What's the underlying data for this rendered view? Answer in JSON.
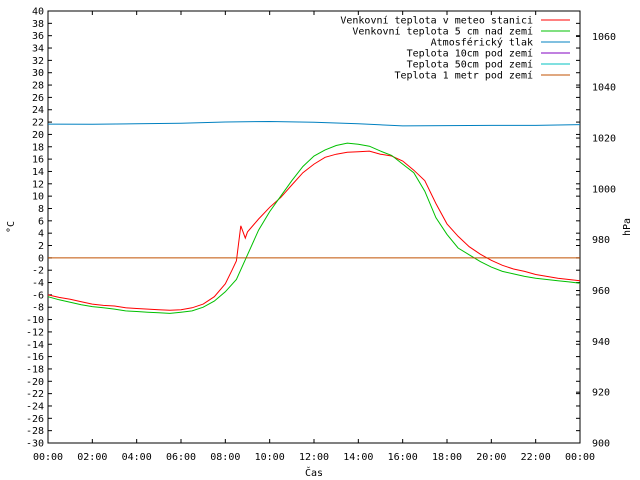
{
  "chart_data": {
    "type": "line",
    "xlabel": "Čas",
    "ylabel": "°C",
    "y2label": "hPa",
    "xlim": [
      0,
      24
    ],
    "ylim": [
      -30,
      40
    ],
    "y2lim": [
      900,
      1070
    ],
    "x_ticks": [
      "00:00",
      "02:00",
      "04:00",
      "06:00",
      "08:00",
      "10:00",
      "12:00",
      "14:00",
      "16:00",
      "18:00",
      "20:00",
      "22:00",
      "00:00"
    ],
    "y_ticks": [
      40,
      38,
      36,
      34,
      32,
      30,
      28,
      26,
      24,
      22,
      20,
      18,
      16,
      14,
      12,
      10,
      8,
      6,
      4,
      2,
      0,
      -2,
      -4,
      -6,
      -8,
      -10,
      -12,
      -14,
      -16,
      -18,
      -20,
      -22,
      -24,
      -26,
      -28,
      -30
    ],
    "y2_ticks": [
      1060,
      1040,
      1020,
      1000,
      980,
      960,
      940,
      920,
      900
    ],
    "grid": false,
    "legend_position": "top-right",
    "series": [
      {
        "name": "Venkovní teplota v meteo stanici",
        "color": "#ff0000",
        "axis": "left",
        "points": [
          [
            0,
            -6
          ],
          [
            0.5,
            -6.4
          ],
          [
            1,
            -6.7
          ],
          [
            1.5,
            -7.1
          ],
          [
            2,
            -7.5
          ],
          [
            2.5,
            -7.7
          ],
          [
            3,
            -7.8
          ],
          [
            3.5,
            -8.1
          ],
          [
            4,
            -8.2
          ],
          [
            4.5,
            -8.3
          ],
          [
            5,
            -8.4
          ],
          [
            5.5,
            -8.5
          ],
          [
            6,
            -8.4
          ],
          [
            6.5,
            -8.1
          ],
          [
            7,
            -7.5
          ],
          [
            7.5,
            -6.3
          ],
          [
            8,
            -4.2
          ],
          [
            8.3,
            -2
          ],
          [
            8.5,
            -0.5
          ],
          [
            8.7,
            5.2
          ],
          [
            8.9,
            3.2
          ],
          [
            9,
            4.2
          ],
          [
            9.5,
            6.3
          ],
          [
            10,
            8.2
          ],
          [
            10.5,
            9.8
          ],
          [
            11,
            11.8
          ],
          [
            11.5,
            13.8
          ],
          [
            12,
            15.2
          ],
          [
            12.5,
            16.3
          ],
          [
            13,
            16.8
          ],
          [
            13.5,
            17.1
          ],
          [
            14,
            17.2
          ],
          [
            14.5,
            17.3
          ],
          [
            15,
            16.8
          ],
          [
            15.5,
            16.5
          ],
          [
            16,
            15.7
          ],
          [
            16.5,
            14.2
          ],
          [
            17,
            12.5
          ],
          [
            17.5,
            8.8
          ],
          [
            18,
            5.5
          ],
          [
            18.5,
            3.5
          ],
          [
            19,
            1.8
          ],
          [
            19.5,
            0.6
          ],
          [
            20,
            -0.4
          ],
          [
            20.5,
            -1.2
          ],
          [
            21,
            -1.8
          ],
          [
            21.5,
            -2.2
          ],
          [
            22,
            -2.7
          ],
          [
            22.5,
            -3
          ],
          [
            23,
            -3.3
          ],
          [
            23.5,
            -3.5
          ],
          [
            24,
            -3.7
          ]
        ]
      },
      {
        "name": "Venkovní teplota 5 cm nad zemí",
        "color": "#00c000",
        "axis": "left",
        "points": [
          [
            0,
            -6.3
          ],
          [
            0.5,
            -6.8
          ],
          [
            1,
            -7.2
          ],
          [
            1.5,
            -7.6
          ],
          [
            2,
            -7.9
          ],
          [
            2.5,
            -8.1
          ],
          [
            3,
            -8.3
          ],
          [
            3.5,
            -8.6
          ],
          [
            4,
            -8.7
          ],
          [
            4.5,
            -8.8
          ],
          [
            5,
            -8.9
          ],
          [
            5.5,
            -9
          ],
          [
            6,
            -8.8
          ],
          [
            6.5,
            -8.6
          ],
          [
            7,
            -8
          ],
          [
            7.5,
            -7
          ],
          [
            8,
            -5.5
          ],
          [
            8.5,
            -3.5
          ],
          [
            9,
            0.5
          ],
          [
            9.5,
            4.5
          ],
          [
            10,
            7.5
          ],
          [
            10.5,
            10
          ],
          [
            11,
            12.5
          ],
          [
            11.5,
            14.8
          ],
          [
            12,
            16.5
          ],
          [
            12.5,
            17.5
          ],
          [
            13,
            18.2
          ],
          [
            13.5,
            18.6
          ],
          [
            14,
            18.4
          ],
          [
            14.5,
            18.1
          ],
          [
            15,
            17.3
          ],
          [
            15.5,
            16.6
          ],
          [
            16,
            15.2
          ],
          [
            16.5,
            13.8
          ],
          [
            17,
            10.8
          ],
          [
            17.5,
            6.5
          ],
          [
            18,
            3.8
          ],
          [
            18.5,
            1.6
          ],
          [
            19,
            0.5
          ],
          [
            19.5,
            -0.6
          ],
          [
            20,
            -1.5
          ],
          [
            20.5,
            -2.2
          ],
          [
            21,
            -2.6
          ],
          [
            21.5,
            -3
          ],
          [
            22,
            -3.3
          ],
          [
            22.5,
            -3.5
          ],
          [
            23,
            -3.7
          ],
          [
            23.5,
            -3.9
          ],
          [
            24,
            -4.1
          ]
        ]
      },
      {
        "name": "Atmosférický tlak",
        "color": "#0080c0",
        "axis": "right",
        "points": [
          [
            0,
            1025.5
          ],
          [
            2,
            1025.4
          ],
          [
            4,
            1025.6
          ],
          [
            6,
            1025.8
          ],
          [
            8,
            1026.3
          ],
          [
            10,
            1026.5
          ],
          [
            12,
            1026.2
          ],
          [
            14,
            1025.6
          ],
          [
            16,
            1024.8
          ],
          [
            18,
            1024.9
          ],
          [
            20,
            1025
          ],
          [
            22,
            1025
          ],
          [
            24,
            1025.3
          ]
        ]
      },
      {
        "name": "Teplota 10cm pod zemí",
        "color": "#8000c0",
        "axis": "left",
        "points": []
      },
      {
        "name": "Teplota 50cm pod zemí",
        "color": "#00c0c0",
        "axis": "left",
        "points": []
      },
      {
        "name": "Teplota 1 metr pod zemí",
        "color": "#c05000",
        "axis": "left",
        "points": [
          [
            0,
            0
          ],
          [
            24,
            0
          ]
        ]
      }
    ]
  }
}
